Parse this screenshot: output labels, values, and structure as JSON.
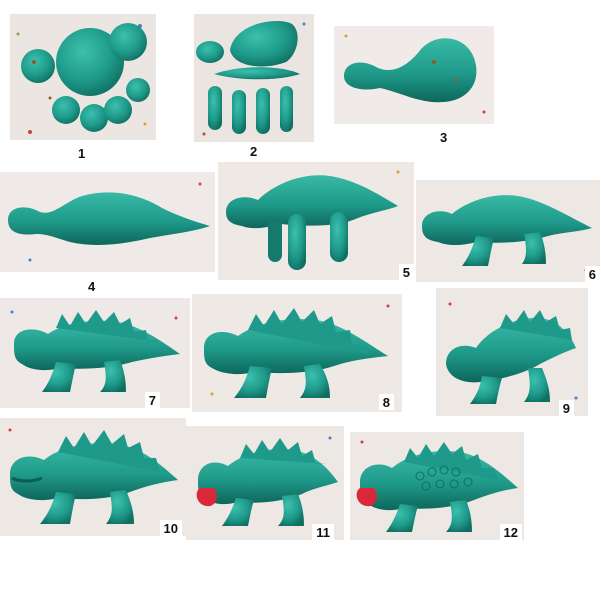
{
  "steps": [
    {
      "label": "1"
    },
    {
      "label": "2"
    },
    {
      "label": "3"
    },
    {
      "label": "4"
    },
    {
      "label": "5"
    },
    {
      "label": "6"
    },
    {
      "label": "7"
    },
    {
      "label": "8"
    },
    {
      "label": "9"
    },
    {
      "label": "10"
    },
    {
      "label": "11"
    },
    {
      "label": "12"
    }
  ],
  "colors": {
    "clay": "#1f9a8a",
    "clay_dark": "#0f6e62",
    "clay_light": "#3cc0ad",
    "tongue": "#d8283a",
    "paper": "#ece7e3"
  }
}
